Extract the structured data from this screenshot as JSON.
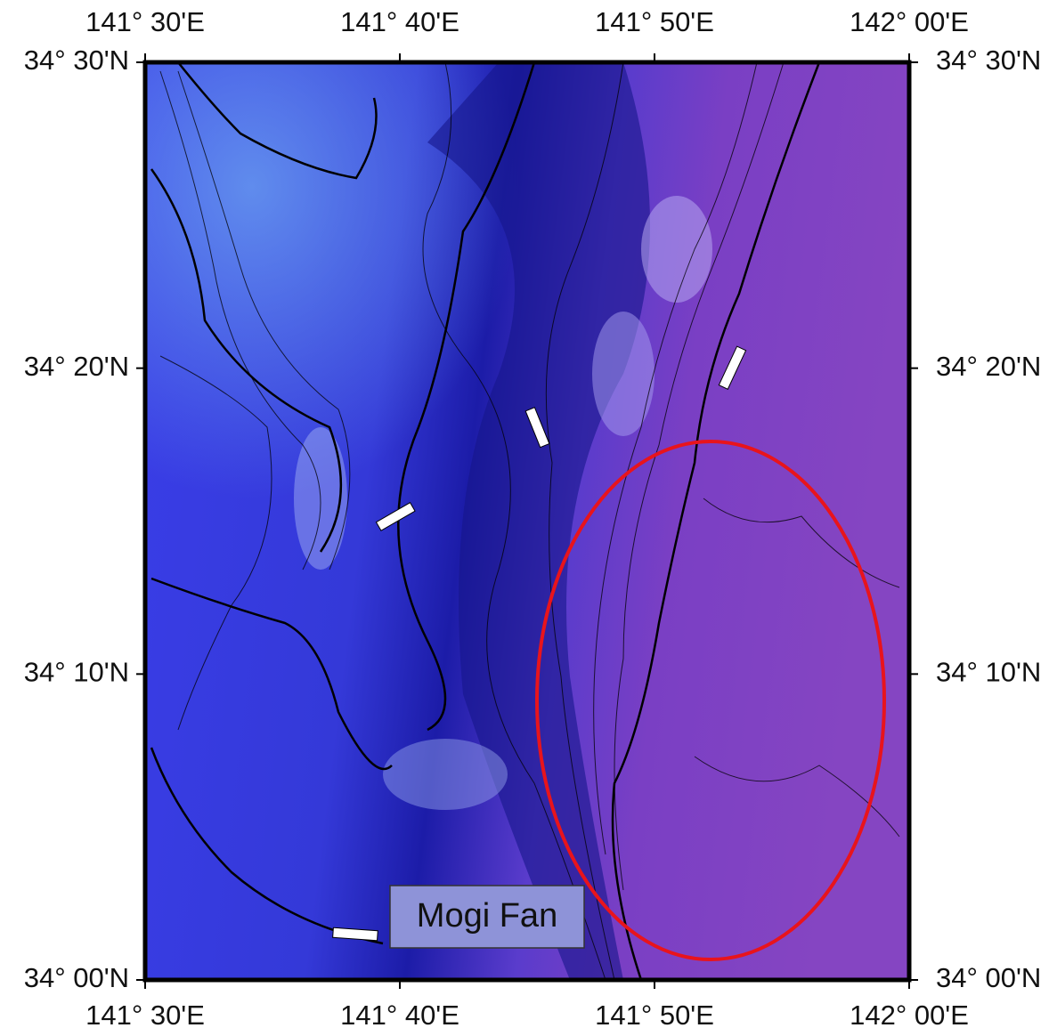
{
  "map": {
    "x_ticks": [
      "141° 30'E",
      "141° 40'E",
      "141° 50'E",
      "142° 00'E"
    ],
    "y_ticks": [
      "34° 30'N",
      "34° 20'N",
      "34° 10'N",
      "34° 00'N"
    ],
    "label": "Mogi Fan"
  }
}
